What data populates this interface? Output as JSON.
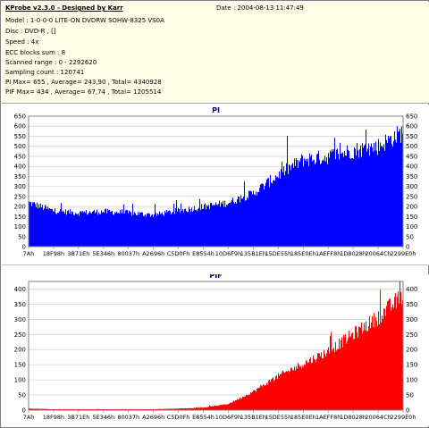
{
  "header": {
    "title": "KProbe v2.3.0 - Designed by Karr",
    "date": "Date : 2004-08-13 11:47:49",
    "lines": [
      "Model : 1-0-0-0 LITE-ON DVDRW SOHW-8325  VS0A",
      "Disc : DVD-R ,  []",
      "Speed : 4x",
      "ECC blocks sum : 8",
      "Scanned range : 0 - 2292620",
      "Sampling count : 120741",
      "PI Max= 655 ,  Average= 243,90 ,  Total= 4340928",
      "PIF Max= 434 ,  Average= 67,74 ,  Total= 1205514"
    ]
  },
  "colors": {
    "pi": "#0000ff",
    "pif": "#ff0000",
    "info_bg": "#ffffe9",
    "grid": "#c8c8c8"
  },
  "x_ticks": [
    "7Ah",
    "18F98h",
    "3B71Eh",
    "5E346h",
    "80037h",
    "A2696h",
    "C5D0Fh",
    "E8554h",
    "10D6F9h",
    "135B1Eh",
    "15DE55h",
    "185E0Eh",
    "1AEFF8h",
    "1D8028h",
    "20064Ch",
    "2299E0h"
  ],
  "chart_data": [
    {
      "type": "area",
      "title": "PI",
      "ylim": [
        0,
        650
      ],
      "yticks": [
        0,
        50,
        100,
        150,
        200,
        250,
        300,
        350,
        400,
        450,
        500,
        550,
        600,
        650
      ],
      "x": [
        0,
        1,
        2,
        3,
        4,
        5,
        6,
        7,
        8,
        9,
        10,
        11,
        12,
        13,
        14,
        15
      ],
      "values": [
        215,
        175,
        165,
        172,
        165,
        155,
        175,
        195,
        215,
        260,
        350,
        425,
        440,
        470,
        490,
        560
      ],
      "max": 655,
      "color": "#0000ff"
    },
    {
      "type": "area",
      "title": "PIF",
      "ylim": [
        0,
        425
      ],
      "yticks": [
        0,
        50,
        100,
        150,
        200,
        250,
        300,
        350,
        400
      ],
      "x": [
        0,
        1,
        2,
        3,
        4,
        5,
        6,
        7,
        8,
        9,
        10,
        11,
        12,
        13,
        14,
        15
      ],
      "values": [
        5,
        3,
        3,
        3,
        3,
        3,
        5,
        8,
        20,
        60,
        110,
        150,
        190,
        245,
        300,
        370
      ],
      "max": 434,
      "color": "#ff0000"
    }
  ]
}
